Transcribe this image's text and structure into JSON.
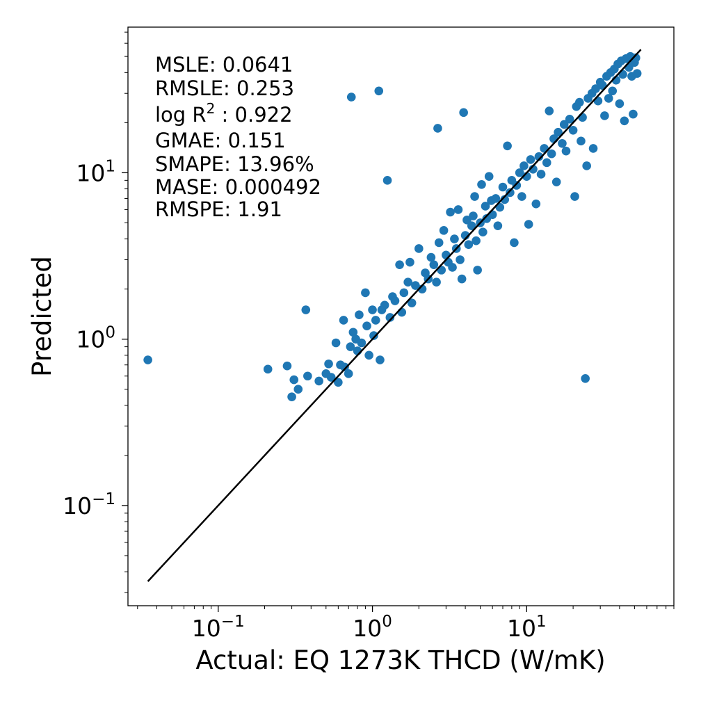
{
  "chart_data": {
    "type": "scatter",
    "xscale": "log",
    "yscale": "log",
    "xlabel": "Actual: EQ 1273K THCD (W/mK)",
    "ylabel": "Predicted",
    "xlim": [
      0.026,
      90
    ],
    "ylim": [
      0.025,
      75
    ],
    "x_ticks": [
      {
        "base": "10",
        "exp": "−1",
        "value": 0.1
      },
      {
        "base": "10",
        "exp": "0",
        "value": 1
      },
      {
        "base": "10",
        "exp": "1",
        "value": 10
      }
    ],
    "y_ticks": [
      {
        "base": "10",
        "exp": "−1",
        "value": 0.1
      },
      {
        "base": "10",
        "exp": "0",
        "value": 1
      },
      {
        "base": "10",
        "exp": "1",
        "value": 10
      }
    ],
    "marker_color": "#1f77b4",
    "line_color": "#000000",
    "identity_line": {
      "from": 0.035,
      "to": 55
    },
    "stats": [
      {
        "label": "MSLE: 0.0641"
      },
      {
        "label": "RMSLE: 0.253"
      },
      {
        "pre": "log R",
        "sup": "2",
        "post": " : 0.922"
      },
      {
        "label": "GMAE: 0.151"
      },
      {
        "label": "SMAPE: 13.96%"
      },
      {
        "label": "MASE: 0.000492"
      },
      {
        "label": "RMSPE: 1.91"
      }
    ],
    "points": [
      [
        0.035,
        0.75
      ],
      [
        0.21,
        0.66
      ],
      [
        0.28,
        0.69
      ],
      [
        0.3,
        0.45
      ],
      [
        0.31,
        0.57
      ],
      [
        0.33,
        0.5
      ],
      [
        0.37,
        1.5
      ],
      [
        0.38,
        0.6
      ],
      [
        0.45,
        0.56
      ],
      [
        0.5,
        0.62
      ],
      [
        0.52,
        0.71
      ],
      [
        0.54,
        0.59
      ],
      [
        0.58,
        0.95
      ],
      [
        0.6,
        0.55
      ],
      [
        0.62,
        0.7
      ],
      [
        0.65,
        1.3
      ],
      [
        0.66,
        0.68
      ],
      [
        0.7,
        0.62
      ],
      [
        0.72,
        0.9
      ],
      [
        0.73,
        28.5
      ],
      [
        0.75,
        1.1
      ],
      [
        0.78,
        1.0
      ],
      [
        0.8,
        0.85
      ],
      [
        0.82,
        1.4
      ],
      [
        0.85,
        0.95
      ],
      [
        0.9,
        1.9
      ],
      [
        0.92,
        1.2
      ],
      [
        0.95,
        0.8
      ],
      [
        1.0,
        1.5
      ],
      [
        1.02,
        1.05
      ],
      [
        1.05,
        1.3
      ],
      [
        1.1,
        31.0
      ],
      [
        1.12,
        0.75
      ],
      [
        1.15,
        1.5
      ],
      [
        1.2,
        1.6
      ],
      [
        1.25,
        9.0
      ],
      [
        1.3,
        1.35
      ],
      [
        1.35,
        1.8
      ],
      [
        1.4,
        1.7
      ],
      [
        1.5,
        2.8
      ],
      [
        1.55,
        1.45
      ],
      [
        1.6,
        1.9
      ],
      [
        1.7,
        2.2
      ],
      [
        1.75,
        2.9
      ],
      [
        1.8,
        1.65
      ],
      [
        1.9,
        2.1
      ],
      [
        2.0,
        3.5
      ],
      [
        2.1,
        2.0
      ],
      [
        2.2,
        2.5
      ],
      [
        2.3,
        2.3
      ],
      [
        2.4,
        3.1
      ],
      [
        2.5,
        2.8
      ],
      [
        2.6,
        2.2
      ],
      [
        2.65,
        18.5
      ],
      [
        2.7,
        3.8
      ],
      [
        2.8,
        2.6
      ],
      [
        2.9,
        4.5
      ],
      [
        3.0,
        3.2
      ],
      [
        3.1,
        2.9
      ],
      [
        3.2,
        5.8
      ],
      [
        3.3,
        2.7
      ],
      [
        3.4,
        4.0
      ],
      [
        3.5,
        3.5
      ],
      [
        3.6,
        6.0
      ],
      [
        3.7,
        3.0
      ],
      [
        3.8,
        2.3
      ],
      [
        3.9,
        23.0
      ],
      [
        4.0,
        4.2
      ],
      [
        4.1,
        5.2
      ],
      [
        4.2,
        3.7
      ],
      [
        4.4,
        4.8
      ],
      [
        4.5,
        5.5
      ],
      [
        4.6,
        7.2
      ],
      [
        4.7,
        3.9
      ],
      [
        4.8,
        2.6
      ],
      [
        5.0,
        5.0
      ],
      [
        5.1,
        8.5
      ],
      [
        5.2,
        4.4
      ],
      [
        5.4,
        6.3
      ],
      [
        5.5,
        5.3
      ],
      [
        5.7,
        9.5
      ],
      [
        5.9,
        6.8
      ],
      [
        6.0,
        5.6
      ],
      [
        6.3,
        7.0
      ],
      [
        6.5,
        4.8
      ],
      [
        6.7,
        6.2
      ],
      [
        7.0,
        8.2
      ],
      [
        7.2,
        6.9
      ],
      [
        7.5,
        14.5
      ],
      [
        7.8,
        7.6
      ],
      [
        8.0,
        9.0
      ],
      [
        8.3,
        3.8
      ],
      [
        8.6,
        8.4
      ],
      [
        9.0,
        10.0
      ],
      [
        9.3,
        7.2
      ],
      [
        9.6,
        11.0
      ],
      [
        10.0,
        9.5
      ],
      [
        10.3,
        4.9
      ],
      [
        10.6,
        12.0
      ],
      [
        11.0,
        10.5
      ],
      [
        11.5,
        6.5
      ],
      [
        12.0,
        12.5
      ],
      [
        12.4,
        9.8
      ],
      [
        13.0,
        14.0
      ],
      [
        13.5,
        11.5
      ],
      [
        14.0,
        23.5
      ],
      [
        14.5,
        13.0
      ],
      [
        15.0,
        16.0
      ],
      [
        15.6,
        8.8
      ],
      [
        16.0,
        17.5
      ],
      [
        17.0,
        15.0
      ],
      [
        17.5,
        19.5
      ],
      [
        18.0,
        13.5
      ],
      [
        19.0,
        21.0
      ],
      [
        20.0,
        18.0
      ],
      [
        20.5,
        7.2
      ],
      [
        21.0,
        25.0
      ],
      [
        22.0,
        26.5
      ],
      [
        22.5,
        15.5
      ],
      [
        23.0,
        21.5
      ],
      [
        24.0,
        0.58
      ],
      [
        24.5,
        11.0
      ],
      [
        25.0,
        28.0
      ],
      [
        26.5,
        30.0
      ],
      [
        27.0,
        14.0
      ],
      [
        28.0,
        32.0
      ],
      [
        29.0,
        27.0
      ],
      [
        30.0,
        35.0
      ],
      [
        31.0,
        33.5
      ],
      [
        32.0,
        22.0
      ],
      [
        33.0,
        38.0
      ],
      [
        34.0,
        28.0
      ],
      [
        35.0,
        40.0
      ],
      [
        36.0,
        31.0
      ],
      [
        37.0,
        42.0
      ],
      [
        38.0,
        36.0
      ],
      [
        39.0,
        45.0
      ],
      [
        40.0,
        26.0
      ],
      [
        41.0,
        47.0
      ],
      [
        42.0,
        39.0
      ],
      [
        43.0,
        20.5
      ],
      [
        44.0,
        48.5
      ],
      [
        46.0,
        43.0
      ],
      [
        47.0,
        50.0
      ],
      [
        48.0,
        38.0
      ],
      [
        49.0,
        22.5
      ],
      [
        50.0,
        46.0
      ],
      [
        51.0,
        49.0
      ],
      [
        52.0,
        39.5
      ]
    ]
  }
}
